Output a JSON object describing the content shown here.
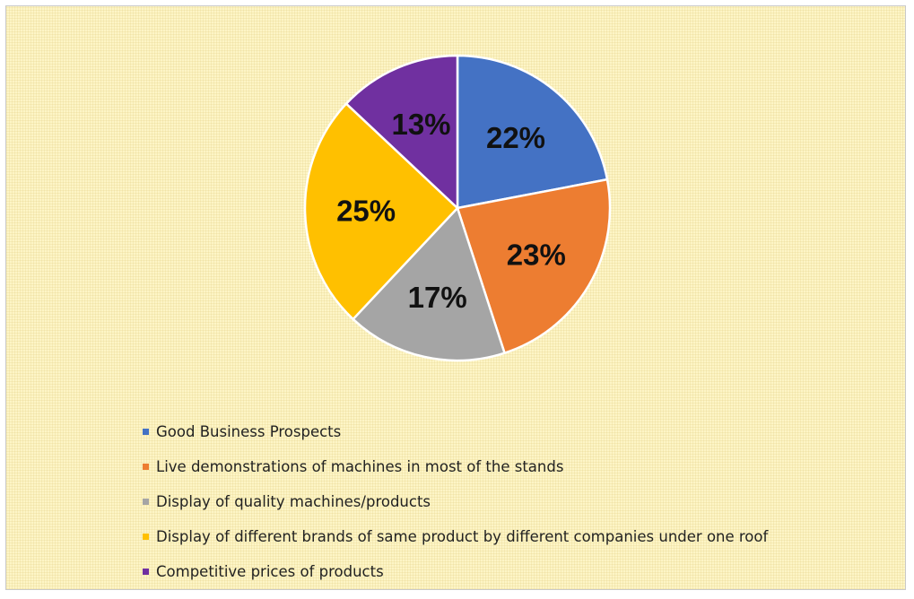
{
  "chart_data": {
    "type": "pie",
    "title": "",
    "legend_position": "bottom-left",
    "series": [
      {
        "name": "Good Business Prospects",
        "value": 22,
        "label": "22%",
        "color": "#4472c4"
      },
      {
        "name": "Live demonstrations of machines in most of the stands",
        "value": 23,
        "label": "23%",
        "color": "#ed7d31"
      },
      {
        "name": "Display of quality machines/products",
        "value": 17,
        "label": "17%",
        "color": "#a5a5a5"
      },
      {
        "name": "Display of different brands of same product by different companies under one roof",
        "value": 25,
        "label": "25%",
        "color": "#ffc000"
      },
      {
        "name": "Competitive prices of products",
        "value": 13,
        "label": "13%",
        "color": "#7030a0"
      }
    ]
  }
}
